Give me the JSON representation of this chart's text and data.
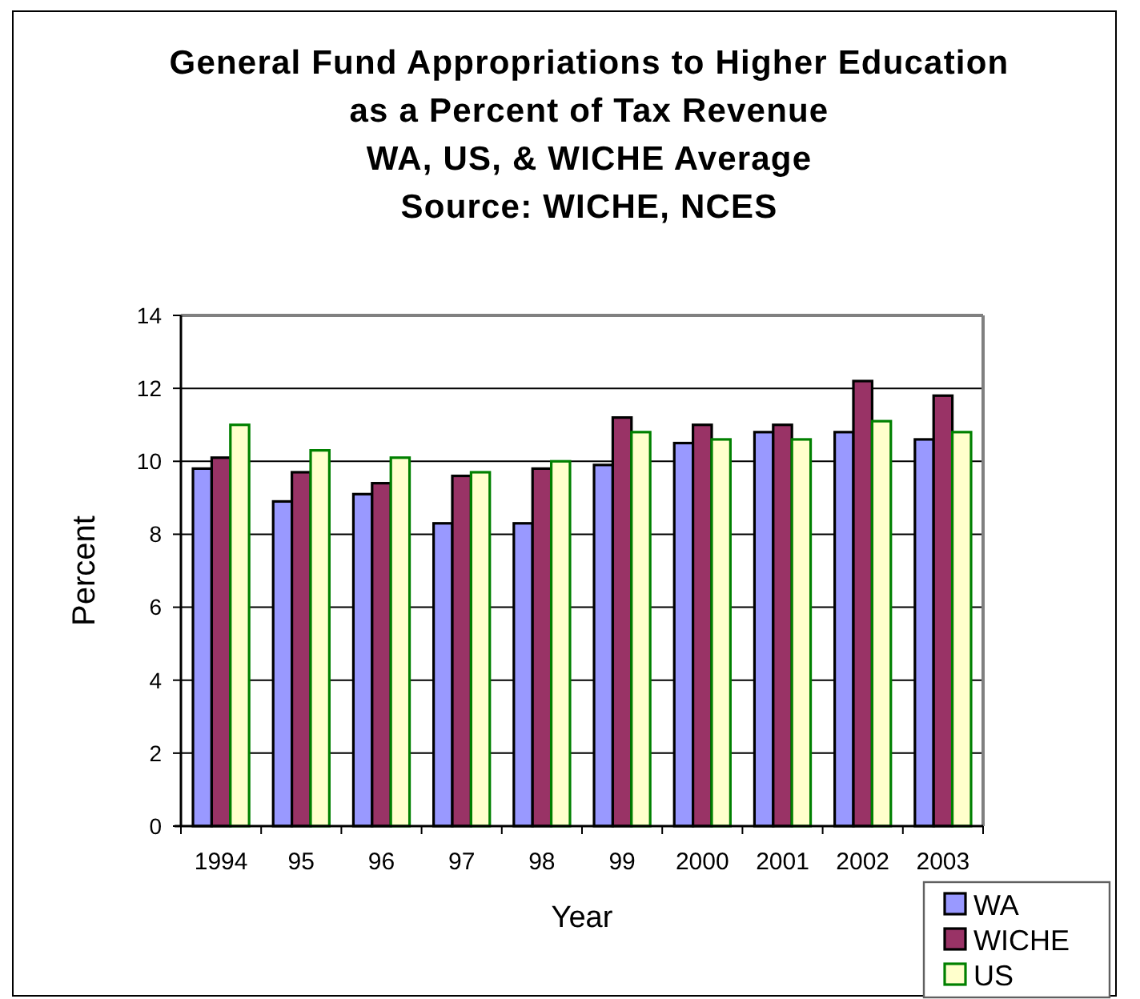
{
  "chart_data": {
    "type": "bar",
    "title": "General Fund Appropriations to Higher Education\nas a Percent of Tax Revenue",
    "subtitle": "WA, US, & WICHE Average",
    "annotations": [
      "Source: WICHE, NCES"
    ],
    "xlabel": "Year",
    "ylabel": "Percent",
    "categories": [
      "1994",
      "95",
      "96",
      "97",
      "98",
      "99",
      "2000",
      "2001",
      "2002",
      "2003"
    ],
    "series": [
      {
        "name": "WA",
        "color": "#9999ff",
        "values": [
          9.8,
          8.9,
          9.1,
          8.3,
          8.3,
          9.9,
          10.5,
          10.8,
          10.8,
          10.6
        ]
      },
      {
        "name": "WICHE",
        "color": "#993366",
        "values": [
          10.1,
          9.7,
          9.4,
          9.6,
          9.8,
          11.2,
          11.0,
          11.0,
          12.2,
          11.8
        ]
      },
      {
        "name": "US",
        "color": "#ffffcc",
        "values": [
          11.0,
          10.3,
          10.1,
          9.7,
          10.0,
          10.8,
          10.6,
          10.6,
          11.1,
          10.8
        ]
      }
    ],
    "ylim": [
      0,
      14
    ],
    "yticks": [
      0,
      2,
      4,
      6,
      8,
      10,
      12,
      14
    ],
    "grid": "y",
    "legend": "bottom right"
  }
}
